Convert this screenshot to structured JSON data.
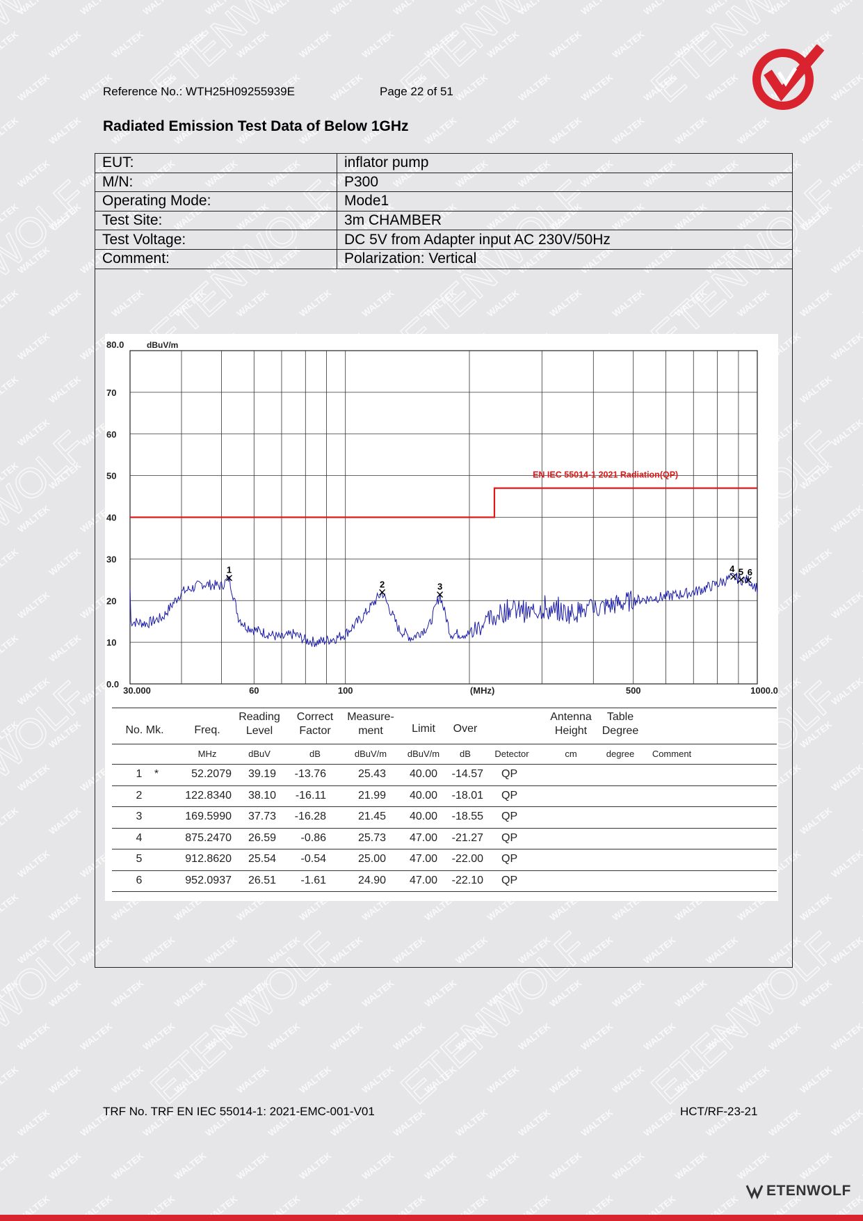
{
  "header": {
    "reference": "Reference No.: WTH25H09255939E",
    "page": "Page 22 of 51"
  },
  "title": "Radiated Emission Test Data of Below 1GHz",
  "info": [
    {
      "key": "EUT:",
      "value": "inflator pump"
    },
    {
      "key": "M/N:",
      "value": "P300"
    },
    {
      "key": "Operating Mode:",
      "value": "Mode1"
    },
    {
      "key": "Test Site:",
      "value": "3m CHAMBER"
    },
    {
      "key": "Test Voltage:",
      "value": "DC 5V from Adapter input AC 230V/50Hz"
    },
    {
      "key": "Comment:",
      "value": "Polarization: Vertical"
    }
  ],
  "chart_data": {
    "type": "line",
    "ylabel": "dBuV/m",
    "xlabel": "(MHz)",
    "x_scale": "log",
    "xlim": [
      30,
      1000
    ],
    "ylim": [
      0,
      80
    ],
    "y_ticks": [
      "80.0",
      "70",
      "60",
      "50",
      "40",
      "30",
      "20",
      "10",
      "0.0"
    ],
    "x_ticks": [
      "30.000",
      "60",
      "100",
      "500",
      "1000.0"
    ],
    "grid": true,
    "limit_line": {
      "name": "EN IEC 55014-1 2021 Radiation(QP)",
      "color": "#e01818",
      "segments": [
        {
          "x": [
            30,
            230
          ],
          "y": 40
        },
        {
          "x": [
            230,
            1000
          ],
          "y": 47
        }
      ]
    },
    "series": [
      {
        "color": "#1a1aa8",
        "x": [
          30,
          33,
          36,
          40,
          45,
          50,
          52.2,
          55,
          57,
          60,
          65,
          70,
          75,
          80,
          85,
          90,
          95,
          100,
          110,
          122.8,
          135,
          145,
          160,
          169.6,
          180,
          200,
          220,
          250,
          280,
          300,
          350,
          400,
          450,
          500,
          600,
          700,
          800,
          875.2,
          912.9,
          952.1,
          1000
        ],
        "y": [
          15,
          14.5,
          16,
          22,
          24,
          23.5,
          25.4,
          16,
          14,
          13,
          12,
          11,
          12,
          10.5,
          10,
          10.5,
          11,
          12,
          16,
          22,
          13,
          11,
          14,
          21.5,
          12,
          12,
          15,
          18,
          17,
          18,
          17,
          18,
          19,
          20,
          21,
          22,
          24,
          25.7,
          25,
          24.9,
          23
        ]
      }
    ],
    "markers": [
      {
        "label": "1",
        "x": 52.2079,
        "y": 25.43
      },
      {
        "label": "2",
        "x": 122.834,
        "y": 21.99
      },
      {
        "label": "3",
        "x": 169.599,
        "y": 21.45
      },
      {
        "label": "4",
        "x": 875.247,
        "y": 25.73
      },
      {
        "label": "5",
        "x": 912.862,
        "y": 25.0
      },
      {
        "label": "6",
        "x": 952.0937,
        "y": 24.9
      }
    ]
  },
  "table": {
    "headers": {
      "no_mk": "No. Mk.",
      "freq": "Freq.",
      "reading": [
        "Reading",
        "Level"
      ],
      "correct": [
        "Correct",
        "Factor"
      ],
      "measure": [
        "Measure-",
        "ment"
      ],
      "limit": "Limit",
      "over": "Over",
      "antenna": [
        "Antenna",
        "Height"
      ],
      "table_deg": [
        "Table",
        "Degree"
      ]
    },
    "units": {
      "freq": "MHz",
      "reading": "dBuV",
      "correct": "dB",
      "measure": "dBuV/m",
      "limit": "dBuV/m",
      "over": "dB",
      "detector": "Detector",
      "antenna": "cm",
      "degree": "degree",
      "comment": "Comment"
    },
    "rows": [
      {
        "no": "1",
        "mk": "*",
        "freq": "52.2079",
        "reading": "39.19",
        "correct": "-13.76",
        "measure": "25.43",
        "limit": "40.00",
        "over": "-14.57",
        "detector": "QP"
      },
      {
        "no": "2",
        "mk": "",
        "freq": "122.8340",
        "reading": "38.10",
        "correct": "-16.11",
        "measure": "21.99",
        "limit": "40.00",
        "over": "-18.01",
        "detector": "QP"
      },
      {
        "no": "3",
        "mk": "",
        "freq": "169.5990",
        "reading": "37.73",
        "correct": "-16.28",
        "measure": "21.45",
        "limit": "40.00",
        "over": "-18.55",
        "detector": "QP"
      },
      {
        "no": "4",
        "mk": "",
        "freq": "875.2470",
        "reading": "26.59",
        "correct": "-0.86",
        "measure": "25.73",
        "limit": "47.00",
        "over": "-21.27",
        "detector": "QP"
      },
      {
        "no": "5",
        "mk": "",
        "freq": "912.8620",
        "reading": "25.54",
        "correct": "-0.54",
        "measure": "25.00",
        "limit": "47.00",
        "over": "-22.00",
        "detector": "QP"
      },
      {
        "no": "6",
        "mk": "",
        "freq": "952.0937",
        "reading": "26.51",
        "correct": "-1.61",
        "measure": "24.90",
        "limit": "47.00",
        "over": "-22.10",
        "detector": "QP"
      }
    ]
  },
  "footer": {
    "trf": "TRF No. TRF EN IEC 55014-1: 2021-EMC-001-V01",
    "code": "HCT/RF-23-21",
    "brand": "ETENWOLF"
  },
  "watermark": {
    "small": "WALTEK",
    "large": "ETENWOLF"
  },
  "colors": {
    "accent": "#d9232e",
    "trace": "#1a1aa8",
    "limit": "#e01818"
  }
}
